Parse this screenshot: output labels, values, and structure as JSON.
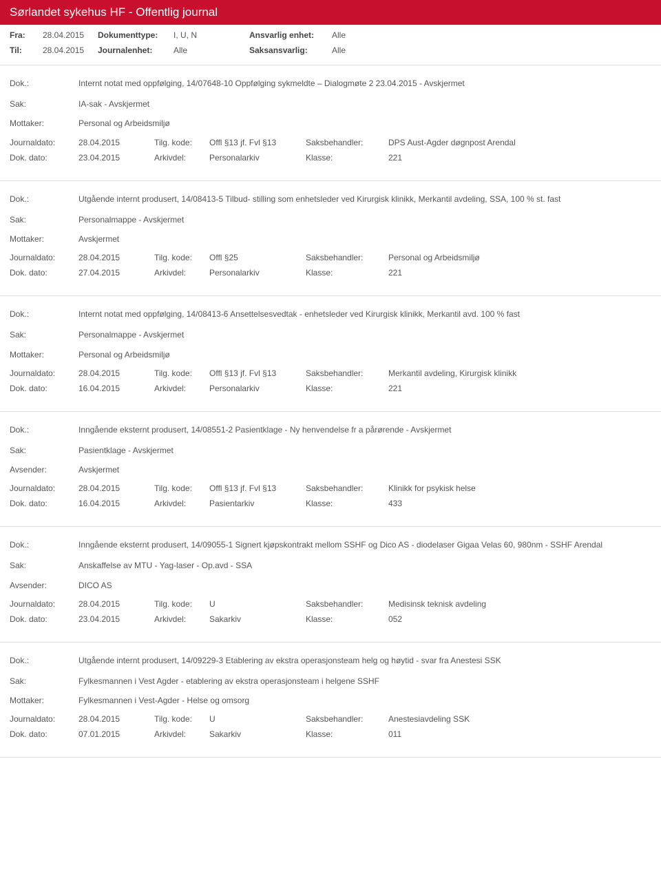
{
  "header": {
    "title": "Sørlandet sykehus HF - Offentlig journal"
  },
  "filter": {
    "fra_lbl": "Fra:",
    "fra": "28.04.2015",
    "til_lbl": "Til:",
    "til": "28.04.2015",
    "doktype_lbl": "Dokumenttype:",
    "doktype": "I, U, N",
    "journalenhet_lbl": "Journalenhet:",
    "journalenhet": "Alle",
    "ansvarlig_lbl": "Ansvarlig enhet:",
    "ansvarlig": "Alle",
    "saksansvarlig_lbl": "Saksansvarlig:",
    "saksansvarlig": "Alle"
  },
  "labels": {
    "dok": "Dok.:",
    "sak": "Sak:",
    "mottaker": "Mottaker:",
    "avsender": "Avsender:",
    "journaldato": "Journaldato:",
    "tilgkode": "Tilg. kode:",
    "saksbehandler": "Saksbehandler:",
    "dokdato": "Dok. dato:",
    "arkivdel": "Arkivdel:",
    "klasse": "Klasse:"
  },
  "entries": [
    {
      "dok": "Internt notat med oppfølging, 14/07648-10 Oppfølging sykmeldte – Dialogmøte 2 23.04.2015 - Avskjermet",
      "sak": "IA-sak - Avskjermet",
      "party_label": "Mottaker:",
      "party": "Personal og Arbeidsmiljø",
      "journaldato": "28.04.2015",
      "tilgkode": "Offl §13 jf. Fvl §13",
      "saksbehandler": "DPS Aust-Agder døgnpost Arendal",
      "dokdato": "23.04.2015",
      "arkivdel": "Personalarkiv",
      "klasse": "221"
    },
    {
      "dok": "Utgående internt produsert, 14/08413-5 Tilbud- stilling som enhetsleder ved Kirurgisk klinikk, Merkantil avdeling, SSA, 100 % st. fast",
      "sak": "Personalmappe - Avskjermet",
      "party_label": "Mottaker:",
      "party": "Avskjermet",
      "journaldato": "28.04.2015",
      "tilgkode": "Offl §25",
      "saksbehandler": "Personal og Arbeidsmiljø",
      "dokdato": "27.04.2015",
      "arkivdel": "Personalarkiv",
      "klasse": "221"
    },
    {
      "dok": "Internt notat med oppfølging, 14/08413-6 Ansettelsesvedtak - enhetsleder ved Kirurgisk klinikk, Merkantil avd. 100 % fast",
      "sak": "Personalmappe - Avskjermet",
      "party_label": "Mottaker:",
      "party": "Personal og Arbeidsmiljø",
      "journaldato": "28.04.2015",
      "tilgkode": "Offl §13 jf. Fvl §13",
      "saksbehandler": "Merkantil avdeling, Kirurgisk klinikk",
      "dokdato": "16.04.2015",
      "arkivdel": "Personalarkiv",
      "klasse": "221"
    },
    {
      "dok": "Inngående eksternt produsert, 14/08551-2 Pasientklage - Ny henvendelse fr a pårørende - Avskjermet",
      "sak": "Pasientklage - Avskjermet",
      "party_label": "Avsender:",
      "party": "Avskjermet",
      "journaldato": "28.04.2015",
      "tilgkode": "Offl §13 jf. Fvl §13",
      "saksbehandler": "Klinikk for psykisk helse",
      "dokdato": "16.04.2015",
      "arkivdel": "Pasientarkiv",
      "klasse": "433"
    },
    {
      "dok": "Inngående eksternt produsert, 14/09055-1 Signert kjøpskontrakt mellom SSHF og Dico AS - diodelaser Gigaa Velas 60, 980nm - SSHF Arendal",
      "sak": "Anskaffelse av MTU - Yag-laser - Op.avd - SSA",
      "party_label": "Avsender:",
      "party": "DICO AS",
      "journaldato": "28.04.2015",
      "tilgkode": "U",
      "saksbehandler": "Medisinsk teknisk avdeling",
      "dokdato": "23.04.2015",
      "arkivdel": "Sakarkiv",
      "klasse": "052"
    },
    {
      "dok": "Utgående internt produsert, 14/09229-3 Etablering av ekstra operasjonsteam helg og høytid - svar fra Anestesi SSK",
      "sak": "Fylkesmannen i Vest Agder - etablering av ekstra operasjonsteam i helgene SSHF",
      "party_label": "Mottaker:",
      "party": "Fylkesmannen i Vest-Agder - Helse og omsorg",
      "journaldato": "28.04.2015",
      "tilgkode": "U",
      "saksbehandler": "Anestesiavdeling SSK",
      "dokdato": "07.01.2015",
      "arkivdel": "Sakarkiv",
      "klasse": "011"
    }
  ]
}
